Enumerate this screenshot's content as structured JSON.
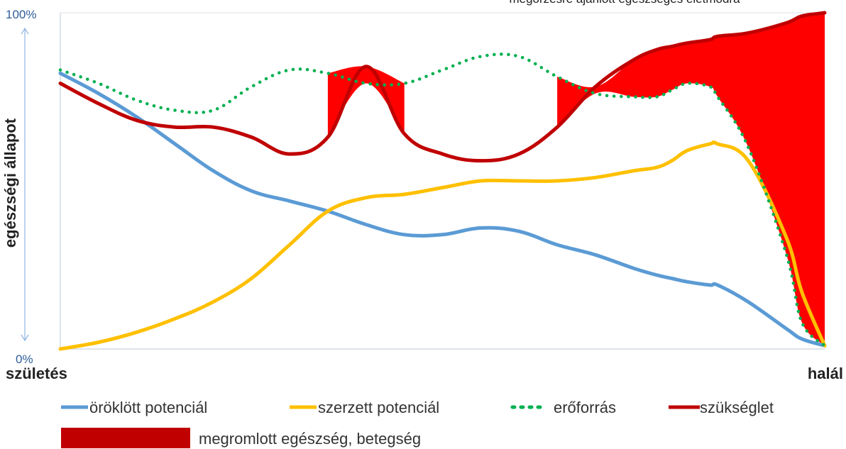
{
  "chart_data": {
    "type": "line",
    "title": "megőrzésre ajánlott egészséges életmódra",
    "ylabel": "egészségi állapot",
    "x_start_label": "születés",
    "x_end_label": "halál",
    "y_ticks": [
      "0%",
      "100%"
    ],
    "ylim": [
      0,
      100
    ],
    "x": [
      0,
      5,
      10,
      15,
      20,
      25,
      30,
      35,
      40,
      45,
      50,
      55,
      60,
      65,
      70,
      75,
      78,
      80,
      82,
      85,
      86,
      90,
      95,
      97,
      100
    ],
    "series": [
      {
        "name": "öröklött potenciál",
        "color": "#5b9bd5",
        "style": "solid",
        "values": [
          82,
          76,
          69,
          61,
          53,
          47,
          44,
          41,
          37,
          34,
          34,
          36,
          35,
          31,
          28,
          24,
          22,
          21,
          20,
          19,
          19,
          14,
          6,
          3,
          1
        ]
      },
      {
        "name": "szerzett potenciál",
        "color": "#ffc000",
        "style": "solid",
        "values": [
          0,
          2,
          5,
          9,
          14,
          21,
          31,
          41,
          45,
          46,
          48,
          50,
          50,
          50,
          51,
          53,
          54,
          56,
          59,
          61,
          61,
          56,
          33,
          17,
          1
        ]
      },
      {
        "name": "erőforrás",
        "color": "#00b050",
        "style": "dotted",
        "values": [
          83,
          79,
          74,
          71,
          71,
          78,
          83,
          82,
          79,
          79,
          83,
          87,
          87,
          81,
          76,
          75,
          75,
          77,
          79,
          78,
          75,
          60,
          28,
          8,
          1
        ]
      },
      {
        "name": "szükséglet",
        "color": "#c00000",
        "style": "solid",
        "values": [
          79,
          73,
          68,
          66,
          66,
          63,
          58,
          63,
          84,
          64,
          58,
          56,
          58,
          66,
          78,
          86,
          89,
          90,
          91,
          92,
          93,
          94,
          97,
          99,
          100
        ]
      }
    ],
    "area": {
      "name": "megromlott egészség, betegség",
      "color": "#ff0000",
      "legend_color": "#c00000"
    },
    "grid": false,
    "legend_position": "bottom"
  }
}
